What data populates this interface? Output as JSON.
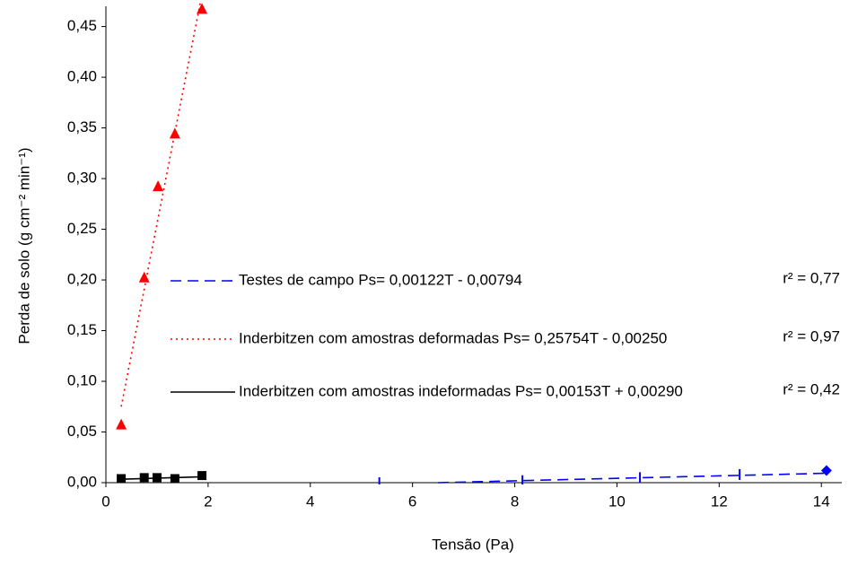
{
  "chart_data": {
    "type": "scatter",
    "xlabel": "Tensão (Pa)",
    "ylabel": "Perda de solo (g cm⁻² min⁻¹)",
    "xlim": [
      0,
      14.4
    ],
    "xticks": [
      0,
      2,
      4,
      6,
      8,
      10,
      12,
      14
    ],
    "ylim": [
      0,
      0.47
    ],
    "yticks": [
      {
        "value": 0,
        "label": "0,00"
      },
      {
        "value": 0.05,
        "label": "0,05"
      },
      {
        "value": 0.1,
        "label": "0,10"
      },
      {
        "value": 0.15,
        "label": "0,15"
      },
      {
        "value": 0.2,
        "label": "0,20"
      },
      {
        "value": 0.25,
        "label": "0,25"
      },
      {
        "value": 0.3,
        "label": "0,30"
      },
      {
        "value": 0.35,
        "label": "0,35"
      },
      {
        "value": 0.4,
        "label": "0,40"
      },
      {
        "value": 0.45,
        "label": "0,45"
      }
    ],
    "series": [
      {
        "name": "Testes de campo Ps= 0,00122T - 0,00794",
        "r2": "r² = 0,77",
        "color": "#0000ff",
        "marker": "tick",
        "dash": "12,7",
        "x": [
          5.35,
          8.15,
          10.45,
          12.4,
          14.1
        ],
        "values": [
          0,
          0.002,
          0.005,
          0.008,
          0.012
        ],
        "trend_x": [
          6.5,
          14.1
        ],
        "trend_values": [
          0,
          0.0093
        ]
      },
      {
        "name": "Inderbitzen com amostras deformadas Ps= 0,25754T - 0,00250",
        "r2": "r² = 0,97",
        "color": "#ff0000",
        "marker": "triangle",
        "dash": "2,4",
        "x": [
          0.3,
          0.75,
          1.02,
          1.35,
          1.88
        ],
        "values": [
          0.057,
          0.202,
          0.292,
          0.344,
          0.467
        ],
        "trend_x": [
          0.3,
          1.88
        ],
        "trend_values": [
          0.075,
          0.482
        ]
      },
      {
        "name": "Inderbitzen com amostras indeformadas Ps= 0,00153T + 0,00290",
        "r2": "r² = 0,42",
        "color": "#000000",
        "marker": "square",
        "dash": "none",
        "x": [
          0.3,
          0.75,
          1.0,
          1.35,
          1.88
        ],
        "values": [
          0.004,
          0.005,
          0.005,
          0.004,
          0.007
        ],
        "trend_x": [
          0.3,
          1.88
        ],
        "trend_values": [
          0.0034,
          0.0058
        ]
      }
    ]
  }
}
